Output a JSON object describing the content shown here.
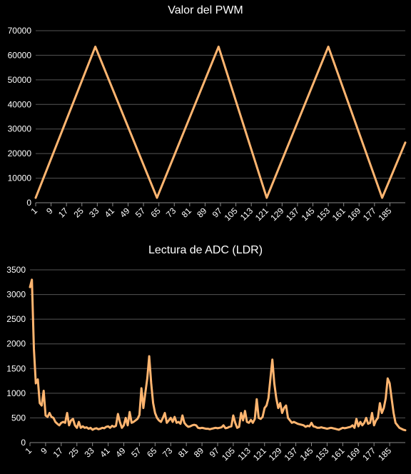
{
  "chart_data": [
    {
      "type": "line",
      "title": "Valor del PWM",
      "xlabel": "",
      "ylabel": "",
      "ylim": [
        0,
        70000
      ],
      "yticks": [
        0,
        10000,
        20000,
        30000,
        40000,
        50000,
        60000,
        70000
      ],
      "xlim": [
        1,
        193
      ],
      "xtick_labels": [
        "1",
        "9",
        "17",
        "25",
        "33",
        "41",
        "49",
        "57",
        "65",
        "73",
        "81",
        "89",
        "97",
        "105",
        "113",
        "121",
        "129",
        "137",
        "145",
        "153",
        "161",
        "169",
        "177",
        "185"
      ],
      "grid": true,
      "legend": "none",
      "line_color": "#ffb570",
      "series": [
        {
          "x": [
            1,
            32,
            64,
            96,
            121,
            153,
            181,
            193
          ],
          "values": [
            2000,
            63500,
            2000,
            63500,
            2000,
            63500,
            2000,
            24500
          ]
        }
      ]
    },
    {
      "type": "line",
      "title": "Lectura de ADC (LDR)",
      "xlabel": "",
      "ylabel": "",
      "ylim": [
        0,
        3500
      ],
      "yticks": [
        0,
        500,
        1000,
        1500,
        2000,
        2500,
        3000,
        3500
      ],
      "xlim": [
        1,
        193
      ],
      "xtick_labels": [
        "1",
        "9",
        "17",
        "25",
        "33",
        "41",
        "49",
        "57",
        "65",
        "73",
        "81",
        "89",
        "97",
        "105",
        "113",
        "121",
        "129",
        "137",
        "145",
        "153",
        "161",
        "169",
        "177",
        "185"
      ],
      "grid": true,
      "legend": "none",
      "line_color": "#ffb570",
      "series": [
        {
          "x": [
            1,
            2,
            3,
            4,
            5,
            6,
            7,
            8,
            9,
            10,
            11,
            12,
            13,
            14,
            15,
            16,
            17,
            18,
            19,
            20,
            21,
            22,
            23,
            24,
            25,
            26,
            27,
            28,
            29,
            30,
            31,
            32,
            33,
            34,
            35,
            36,
            37,
            38,
            39,
            40,
            41,
            42,
            43,
            44,
            45,
            46,
            47,
            48,
            49,
            50,
            51,
            52,
            53,
            54,
            55,
            56,
            57,
            58,
            59,
            60,
            61,
            62,
            63,
            64,
            65,
            66,
            67,
            68,
            69,
            70,
            71,
            72,
            73,
            74,
            75,
            76,
            77,
            78,
            79,
            80,
            81,
            82,
            83,
            84,
            85,
            86,
            87,
            88,
            89,
            90,
            91,
            92,
            93,
            94,
            95,
            96,
            97,
            98,
            99,
            100,
            101,
            102,
            103,
            104,
            105,
            106,
            107,
            108,
            109,
            110,
            111,
            112,
            113,
            114,
            115,
            116,
            117,
            118,
            119,
            120,
            121,
            122,
            123,
            124,
            125,
            126,
            127,
            128,
            129,
            130,
            131,
            132,
            133,
            134,
            135,
            136,
            137,
            138,
            139,
            140,
            141,
            142,
            143,
            144,
            145,
            146,
            147,
            148,
            149,
            150,
            151,
            152,
            153,
            154,
            155,
            156,
            157,
            158,
            159,
            160,
            161,
            162,
            163,
            164,
            165,
            166,
            167,
            168,
            169,
            170,
            171,
            172,
            173,
            174,
            175,
            176,
            177,
            178,
            179,
            180,
            181,
            182,
            183,
            184,
            185,
            186,
            187,
            188,
            189,
            190,
            191,
            192,
            193
          ],
          "values": [
            3150,
            3300,
            1900,
            1200,
            1280,
            800,
            750,
            1050,
            550,
            520,
            600,
            520,
            500,
            420,
            380,
            350,
            400,
            420,
            400,
            600,
            350,
            450,
            480,
            350,
            300,
            420,
            300,
            330,
            300,
            310,
            280,
            300,
            260,
            280,
            290,
            270,
            280,
            300,
            290,
            320,
            330,
            300,
            340,
            320,
            340,
            580,
            420,
            300,
            350,
            500,
            350,
            620,
            400,
            420,
            450,
            480,
            560,
            1100,
            700,
            1000,
            1300,
            1750,
            1200,
            800,
            600,
            500,
            450,
            420,
            500,
            600,
            400,
            450,
            500,
            420,
            520,
            400,
            420,
            380,
            550,
            400,
            350,
            320,
            330,
            350,
            360,
            350,
            300,
            290,
            300,
            290,
            280,
            280,
            270,
            280,
            290,
            300,
            290,
            300,
            310,
            350,
            290,
            300,
            320,
            330,
            550,
            400,
            300,
            320,
            600,
            450,
            640,
            420,
            400,
            460,
            400,
            480,
            880,
            500,
            480,
            520,
            700,
            750,
            900,
            1300,
            1680,
            1200,
            900,
            700,
            800,
            600,
            700,
            750,
            500,
            450,
            400,
            420,
            400,
            380,
            370,
            360,
            350,
            320,
            340,
            330,
            400,
            330,
            320,
            300,
            300,
            310,
            300,
            290,
            280,
            290,
            300,
            290,
            280,
            270,
            260,
            280,
            300,
            290,
            300,
            310,
            320,
            350,
            300,
            480,
            330,
            420,
            350,
            400,
            500,
            380,
            400,
            600,
            350,
            450,
            500,
            800,
            600,
            700,
            900,
            1300,
            1200,
            900,
            600,
            400,
            350,
            300,
            280,
            260,
            250
          ]
        }
      ]
    }
  ]
}
